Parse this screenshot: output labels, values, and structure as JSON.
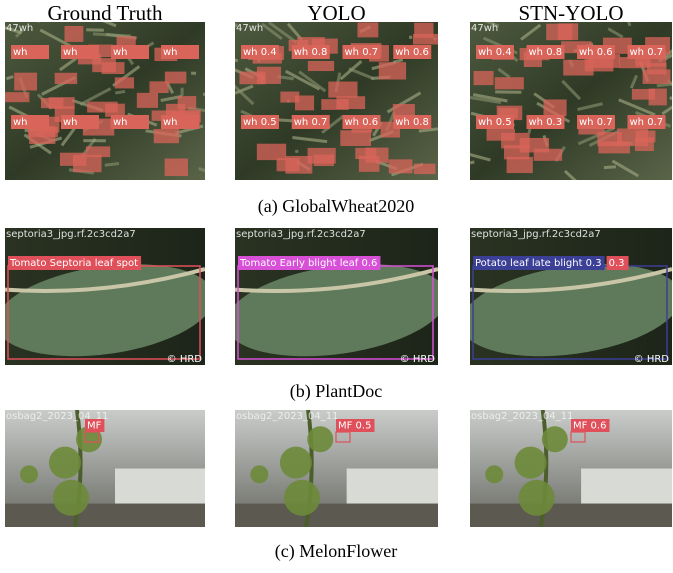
{
  "columns": [
    "Ground Truth",
    "YOLO",
    "STN-YOLO"
  ],
  "rows": [
    {
      "caption": "(a) GlobalWheat2020",
      "file": "47wh",
      "panels": [
        {
          "color": "#d9645a",
          "labels": [
            "wh",
            "wh",
            "wh",
            "wh",
            "wh",
            "wh",
            "wh",
            "wh"
          ]
        },
        {
          "color": "#d9645a",
          "labels": [
            "wh 0.4",
            "wh 0.8",
            "wh 0.7",
            "wh 0.6",
            "wh 0.5",
            "wh 0.7",
            "wh 0.6",
            "wh 0.8"
          ]
        },
        {
          "color": "#d9645a",
          "labels": [
            "wh 0.4",
            "wh 0.8",
            "wh 0.6",
            "wh 0.7",
            "wh 0.5",
            "wh 0.3",
            "wh 0.7",
            "wh 0.7"
          ]
        }
      ]
    },
    {
      "caption": "(b) PlantDoc",
      "file": "septoria3_jpg.rf.2c3cd2a7",
      "watermark": "© HRD",
      "panels": [
        {
          "color": "#e0505a",
          "labels": [
            "Tomato Septoria leaf spot"
          ]
        },
        {
          "color": "#d84fd8",
          "labels": [
            "Tomato Early blight leaf 0.6"
          ]
        },
        {
          "color": "#3b3f95",
          "labels": [
            "Potato leaf late blight 0.3",
            "0.3"
          ]
        }
      ]
    },
    {
      "caption": "(c) MelonFlower",
      "file": "osbag2_2023_04_11",
      "panels": [
        {
          "color": "#e0505a",
          "labels": [
            "MF"
          ]
        },
        {
          "color": "#e0505a",
          "labels": [
            "MF 0.5"
          ]
        },
        {
          "color": "#e0505a",
          "labels": [
            "MF 0.6"
          ]
        }
      ]
    }
  ]
}
